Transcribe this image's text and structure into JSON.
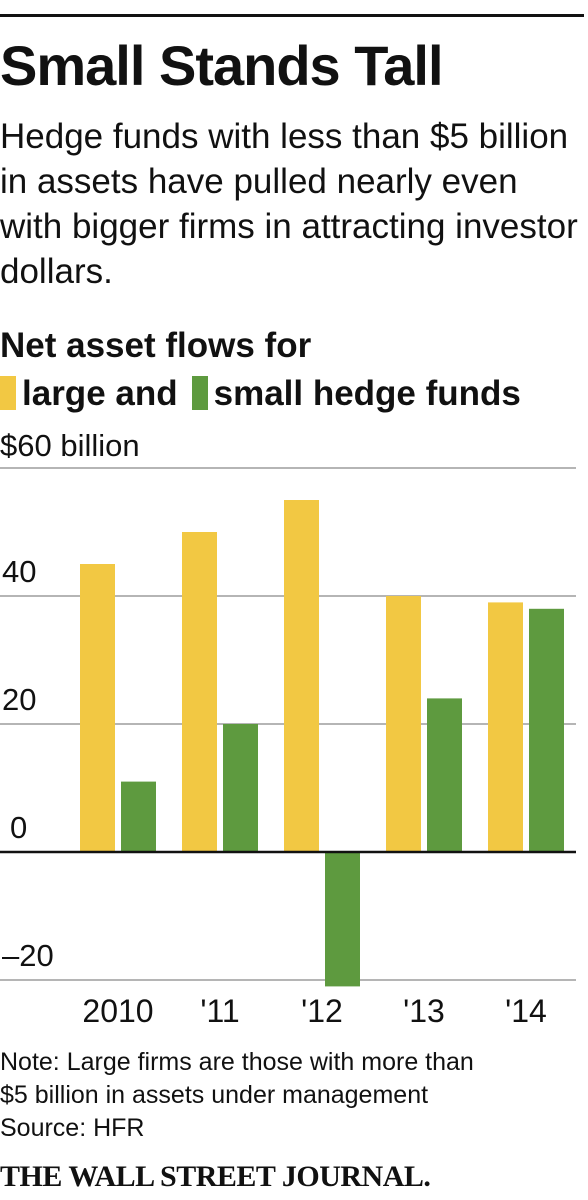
{
  "header": {
    "title": "Small Stands Tall",
    "subtitle": "Hedge funds with less than $5 billion in assets have pulled nearly even with bigger firms in attracting investor dollars."
  },
  "chart_title": {
    "line1": "Net asset flows for",
    "legend_large": "large and",
    "legend_small": "small hedge funds"
  },
  "colors": {
    "large": "#f2c843",
    "small": "#5e9a3f",
    "grid": "#b5b5b5",
    "zero_line": "#111111"
  },
  "chart_data": {
    "type": "bar",
    "categories": [
      "2010",
      "'11",
      "'12",
      "'13",
      "'14"
    ],
    "series": [
      {
        "name": "large",
        "values": [
          45,
          50,
          55,
          40,
          39
        ]
      },
      {
        "name": "small",
        "values": [
          11,
          20,
          -21,
          24,
          38
        ]
      }
    ],
    "unit_label": "$60 billion",
    "ylim": [
      -20,
      60
    ],
    "yticks": [
      {
        "value": 60,
        "label": ""
      },
      {
        "value": 40,
        "label": "40"
      },
      {
        "value": 20,
        "label": "20"
      },
      {
        "value": 0,
        "label": "0"
      },
      {
        "value": -20,
        "label": "–20"
      }
    ],
    "grid": true,
    "legend": "top-left"
  },
  "footer": {
    "note": "Note: Large firms are those with more than $5 billion in assets under management",
    "note_line1": "Note: Large firms are those with more than",
    "note_line2": "$5 billion in assets under management",
    "source": "Source: HFR",
    "publisher": "THE WALL STREET JOURNAL."
  }
}
